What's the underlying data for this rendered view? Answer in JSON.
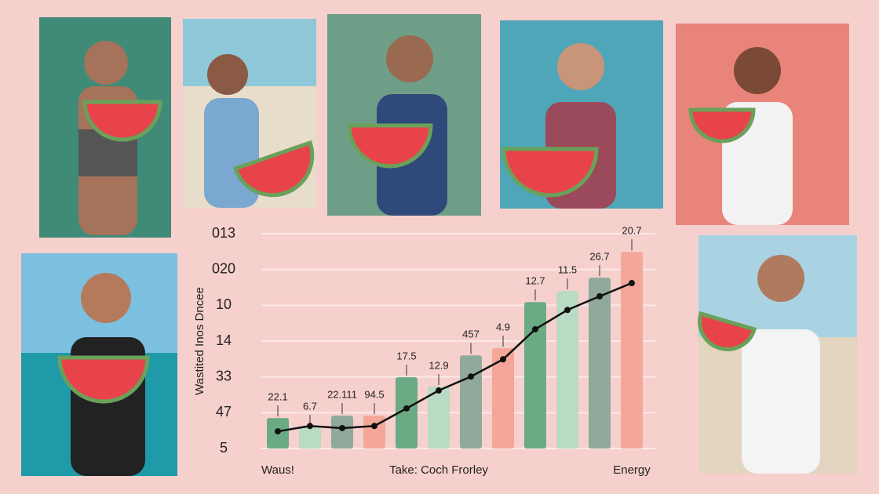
{
  "chart_data": {
    "type": "bar",
    "y_label": "Wastited Inos Dncee",
    "categories": [
      "Waus!",
      null,
      null,
      null,
      null,
      "Take: Coch Frorley",
      null,
      null,
      null,
      null,
      null,
      "Energy"
    ],
    "bar_labels": [
      "22.1",
      "6.7",
      "22.111",
      "94.5",
      "17.5",
      "12.9",
      "457",
      "4.9",
      "12.7",
      "11.5",
      "26.7",
      "20.7"
    ],
    "series": [
      {
        "type": "bar",
        "colors": [
          "#6aab85",
          "#b9dac3",
          "#8fa99b",
          "#f4a698",
          "#6aab85",
          "#b9dac3",
          "#8fa99b",
          "#f4a698",
          "#6aab85",
          "#b9dac3",
          "#8fa99b",
          "#f4a698"
        ],
        "values": [
          0.85,
          0.59,
          0.92,
          0.92,
          1.99,
          1.73,
          2.6,
          2.8,
          4.09,
          4.4,
          4.77,
          5.49
        ]
      },
      {
        "type": "line",
        "color": "#111111",
        "values": [
          0.48,
          0.63,
          0.57,
          0.63,
          1.12,
          1.62,
          2.01,
          2.49,
          3.33,
          3.87,
          4.25,
          4.62
        ]
      }
    ],
    "ylim": [
      0,
      6
    ],
    "yticks": [
      {
        "value": 0,
        "label": "5"
      },
      {
        "value": 1,
        "label": "47"
      },
      {
        "value": 2,
        "label": "33"
      },
      {
        "value": 3,
        "label": "14"
      },
      {
        "value": 4,
        "label": "10"
      },
      {
        "value": 5,
        "label": "020"
      },
      {
        "value": 6,
        "label": "013"
      }
    ],
    "grid": true
  }
}
